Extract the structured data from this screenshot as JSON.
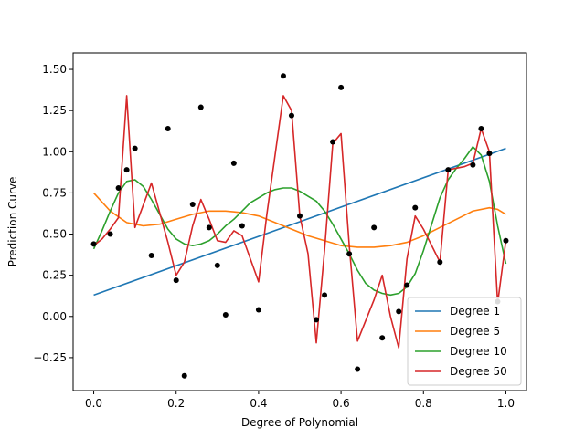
{
  "chart_data": {
    "type": "line",
    "title": "",
    "xlabel": "Degree of Polynomial",
    "ylabel": "Prediction Curve",
    "xlim": [
      -0.05,
      1.05
    ],
    "ylim": [
      -0.45,
      1.6
    ],
    "xticks": [
      0.0,
      0.2,
      0.4,
      0.6,
      0.8,
      1.0
    ],
    "xtick_labels": [
      "0.0",
      "0.2",
      "0.4",
      "0.6",
      "0.8",
      "1.0"
    ],
    "yticks": [
      -0.25,
      0.0,
      0.25,
      0.5,
      0.75,
      1.0,
      1.25,
      1.5
    ],
    "ytick_labels": [
      "−0.25",
      "0.00",
      "0.25",
      "0.50",
      "0.75",
      "1.00",
      "1.25",
      "1.50"
    ],
    "grid": false,
    "legend_position": "lower-right",
    "scatter": {
      "color": "#000000",
      "points": [
        [
          0.0,
          0.44
        ],
        [
          0.04,
          0.5
        ],
        [
          0.06,
          0.78
        ],
        [
          0.08,
          0.89
        ],
        [
          0.1,
          1.02
        ],
        [
          0.14,
          0.37
        ],
        [
          0.18,
          1.14
        ],
        [
          0.2,
          0.22
        ],
        [
          0.22,
          -0.36
        ],
        [
          0.24,
          0.68
        ],
        [
          0.26,
          1.27
        ],
        [
          0.28,
          0.54
        ],
        [
          0.3,
          0.31
        ],
        [
          0.32,
          0.01
        ],
        [
          0.34,
          0.93
        ],
        [
          0.36,
          0.55
        ],
        [
          0.4,
          0.04
        ],
        [
          0.46,
          1.46
        ],
        [
          0.48,
          1.22
        ],
        [
          0.5,
          0.61
        ],
        [
          0.54,
          -0.02
        ],
        [
          0.56,
          0.13
        ],
        [
          0.58,
          1.06
        ],
        [
          0.6,
          1.39
        ],
        [
          0.62,
          0.38
        ],
        [
          0.64,
          -0.32
        ],
        [
          0.68,
          0.54
        ],
        [
          0.7,
          -0.13
        ],
        [
          0.74,
          0.03
        ],
        [
          0.76,
          0.19
        ],
        [
          0.78,
          0.66
        ],
        [
          0.84,
          0.33
        ],
        [
          0.86,
          0.89
        ],
        [
          0.92,
          0.92
        ],
        [
          0.94,
          1.14
        ],
        [
          0.96,
          0.99
        ],
        [
          0.98,
          0.09
        ],
        [
          1.0,
          0.46
        ]
      ]
    },
    "series": [
      {
        "name": "Degree 1",
        "color": "#1f77b4",
        "points": [
          [
            0.0,
            0.13
          ],
          [
            1.0,
            1.02
          ]
        ]
      },
      {
        "name": "Degree 5",
        "color": "#ff7f0e",
        "points": [
          [
            0.0,
            0.75
          ],
          [
            0.04,
            0.64
          ],
          [
            0.08,
            0.57
          ],
          [
            0.12,
            0.55
          ],
          [
            0.16,
            0.56
          ],
          [
            0.2,
            0.59
          ],
          [
            0.24,
            0.62
          ],
          [
            0.28,
            0.64
          ],
          [
            0.32,
            0.64
          ],
          [
            0.36,
            0.63
          ],
          [
            0.4,
            0.61
          ],
          [
            0.44,
            0.57
          ],
          [
            0.48,
            0.53
          ],
          [
            0.52,
            0.49
          ],
          [
            0.56,
            0.46
          ],
          [
            0.6,
            0.43
          ],
          [
            0.64,
            0.42
          ],
          [
            0.68,
            0.42
          ],
          [
            0.72,
            0.43
          ],
          [
            0.76,
            0.45
          ],
          [
            0.8,
            0.49
          ],
          [
            0.84,
            0.54
          ],
          [
            0.88,
            0.59
          ],
          [
            0.92,
            0.64
          ],
          [
            0.96,
            0.66
          ],
          [
            0.98,
            0.65
          ],
          [
            1.0,
            0.62
          ]
        ]
      },
      {
        "name": "Degree 10",
        "color": "#2ca02c",
        "points": [
          [
            0.0,
            0.41
          ],
          [
            0.02,
            0.52
          ],
          [
            0.04,
            0.64
          ],
          [
            0.06,
            0.75
          ],
          [
            0.08,
            0.82
          ],
          [
            0.1,
            0.83
          ],
          [
            0.12,
            0.79
          ],
          [
            0.14,
            0.71
          ],
          [
            0.16,
            0.62
          ],
          [
            0.18,
            0.53
          ],
          [
            0.2,
            0.47
          ],
          [
            0.22,
            0.44
          ],
          [
            0.24,
            0.43
          ],
          [
            0.26,
            0.44
          ],
          [
            0.28,
            0.46
          ],
          [
            0.3,
            0.5
          ],
          [
            0.32,
            0.55
          ],
          [
            0.34,
            0.59
          ],
          [
            0.36,
            0.64
          ],
          [
            0.38,
            0.69
          ],
          [
            0.4,
            0.72
          ],
          [
            0.42,
            0.75
          ],
          [
            0.44,
            0.77
          ],
          [
            0.46,
            0.78
          ],
          [
            0.48,
            0.78
          ],
          [
            0.5,
            0.76
          ],
          [
            0.52,
            0.73
          ],
          [
            0.54,
            0.7
          ],
          [
            0.56,
            0.64
          ],
          [
            0.58,
            0.56
          ],
          [
            0.6,
            0.47
          ],
          [
            0.62,
            0.38
          ],
          [
            0.64,
            0.28
          ],
          [
            0.66,
            0.2
          ],
          [
            0.68,
            0.16
          ],
          [
            0.7,
            0.14
          ],
          [
            0.72,
            0.13
          ],
          [
            0.74,
            0.14
          ],
          [
            0.76,
            0.18
          ],
          [
            0.78,
            0.26
          ],
          [
            0.8,
            0.4
          ],
          [
            0.82,
            0.56
          ],
          [
            0.84,
            0.72
          ],
          [
            0.86,
            0.83
          ],
          [
            0.88,
            0.9
          ],
          [
            0.9,
            0.96
          ],
          [
            0.92,
            1.03
          ],
          [
            0.94,
            0.98
          ],
          [
            0.96,
            0.82
          ],
          [
            0.98,
            0.55
          ],
          [
            1.0,
            0.32
          ]
        ]
      },
      {
        "name": "Degree 50",
        "color": "#d62728",
        "points": [
          [
            0.0,
            0.43
          ],
          [
            0.02,
            0.47
          ],
          [
            0.04,
            0.53
          ],
          [
            0.06,
            0.6
          ],
          [
            0.08,
            1.34
          ],
          [
            0.1,
            0.54
          ],
          [
            0.14,
            0.81
          ],
          [
            0.16,
            0.63
          ],
          [
            0.18,
            0.45
          ],
          [
            0.2,
            0.25
          ],
          [
            0.22,
            0.33
          ],
          [
            0.24,
            0.55
          ],
          [
            0.26,
            0.71
          ],
          [
            0.28,
            0.59
          ],
          [
            0.3,
            0.46
          ],
          [
            0.32,
            0.45
          ],
          [
            0.34,
            0.52
          ],
          [
            0.36,
            0.49
          ],
          [
            0.38,
            0.35
          ],
          [
            0.4,
            0.21
          ],
          [
            0.42,
            0.62
          ],
          [
            0.44,
            0.98
          ],
          [
            0.46,
            1.34
          ],
          [
            0.48,
            1.25
          ],
          [
            0.5,
            0.61
          ],
          [
            0.52,
            0.38
          ],
          [
            0.54,
            -0.16
          ],
          [
            0.56,
            0.4
          ],
          [
            0.58,
            1.05
          ],
          [
            0.6,
            1.11
          ],
          [
            0.62,
            0.43
          ],
          [
            0.64,
            -0.15
          ],
          [
            0.68,
            0.1
          ],
          [
            0.7,
            0.25
          ],
          [
            0.72,
            0.0
          ],
          [
            0.74,
            -0.19
          ],
          [
            0.76,
            0.35
          ],
          [
            0.78,
            0.61
          ],
          [
            0.8,
            0.53
          ],
          [
            0.82,
            0.43
          ],
          [
            0.84,
            0.33
          ],
          [
            0.86,
            0.89
          ],
          [
            0.88,
            0.9
          ],
          [
            0.9,
            0.91
          ],
          [
            0.92,
            0.93
          ],
          [
            0.94,
            1.14
          ],
          [
            0.96,
            1.0
          ],
          [
            0.98,
            0.08
          ],
          [
            1.0,
            0.46
          ]
        ]
      }
    ]
  }
}
